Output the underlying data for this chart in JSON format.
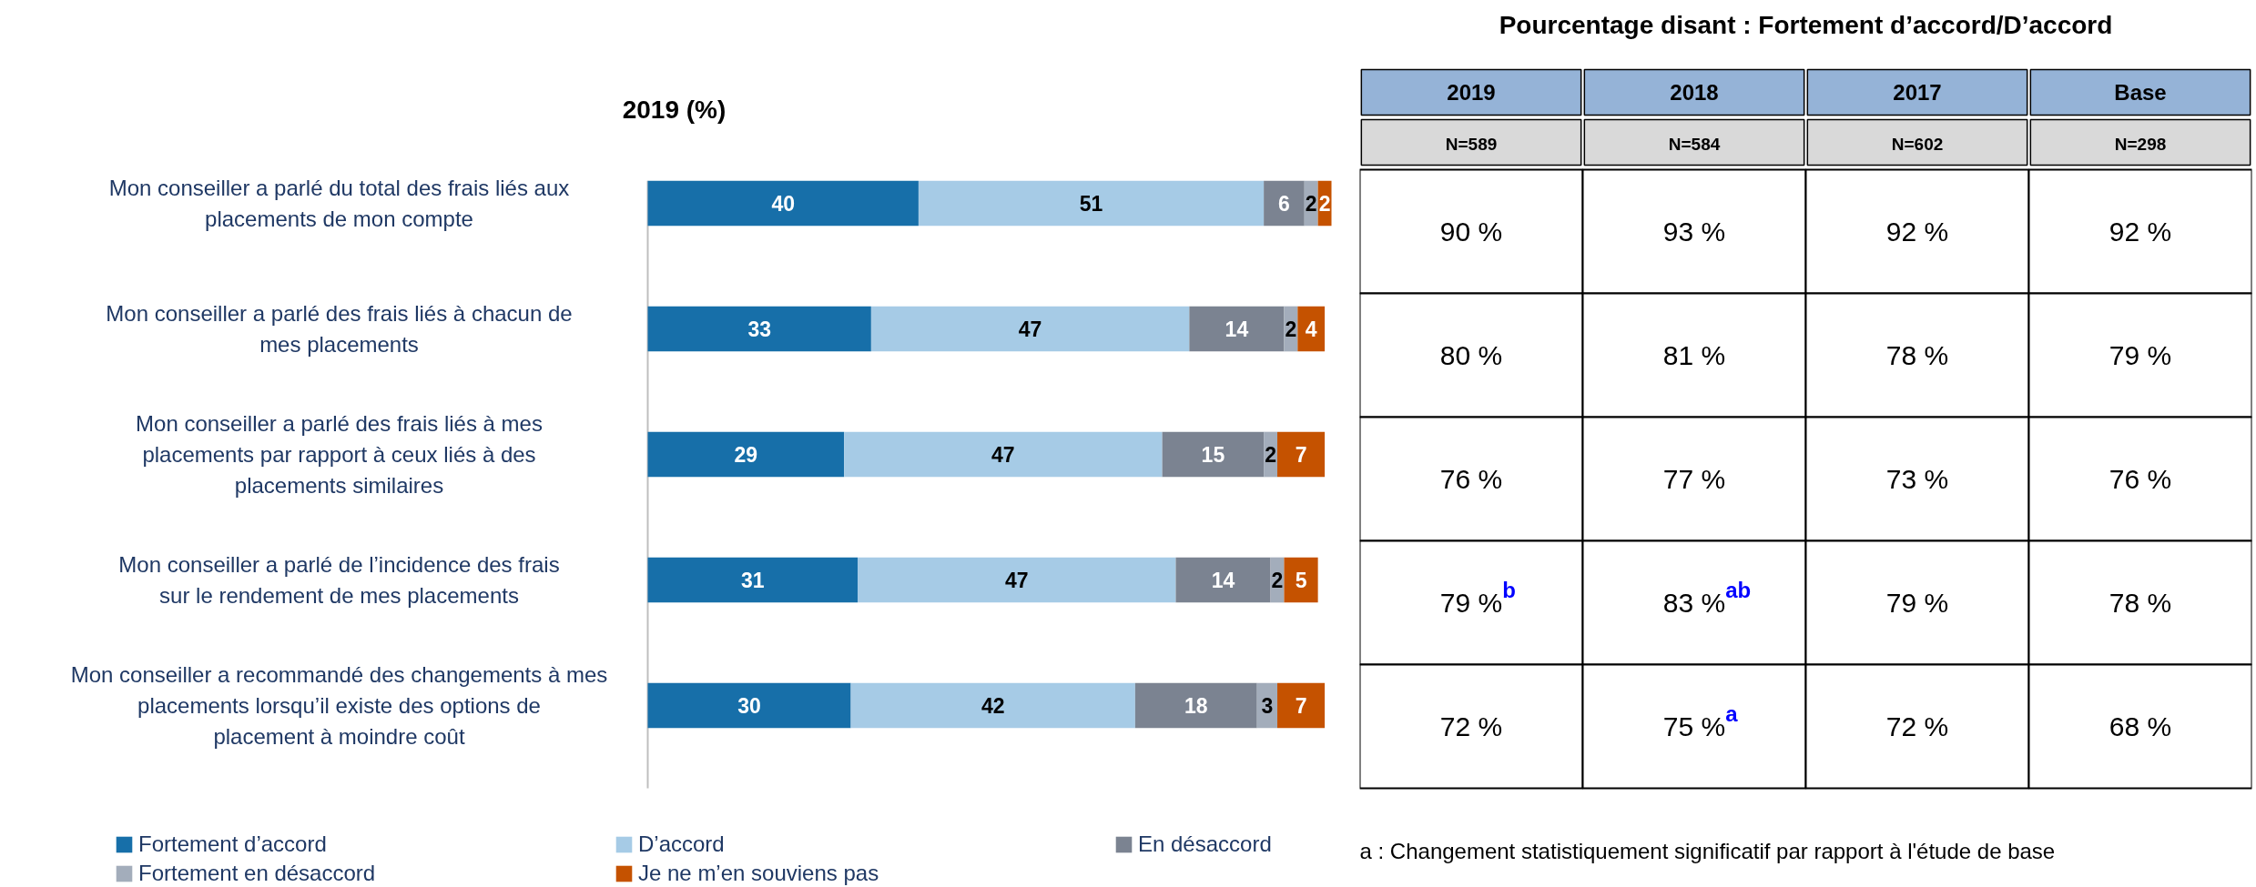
{
  "chart_data": [
    {
      "type": "bar",
      "orientation": "horizontal",
      "stacked": true,
      "title": "2019 (%)",
      "categories": [
        "Mon conseiller a parlé du total des frais liés aux placements de mon compte",
        "Mon conseiller a parlé des frais liés à chacun de mes placements",
        "Mon conseiller a parlé des frais liés à mes placements par rapport à ceux liés à des placements similaires",
        "Mon conseiller a parlé de l’incidence des frais sur le rendement de mes placements",
        "Mon conseiller a recommandé des changements à mes placements lorsqu’il existe des options de placement à moindre coût"
      ],
      "series": [
        {
          "name": "Fortement d’accord",
          "color": "#176fa9",
          "values": [
            40,
            33,
            29,
            31,
            30
          ]
        },
        {
          "name": "D’accord",
          "color": "#a6cbe6",
          "values": [
            51,
            47,
            47,
            47,
            42
          ]
        },
        {
          "name": "En désaccord",
          "color": "#7b8391",
          "values": [
            6,
            14,
            15,
            14,
            18
          ]
        },
        {
          "name": "Fortement en désaccord",
          "color": "#a3adbb",
          "values": [
            2,
            2,
            2,
            2,
            3
          ]
        },
        {
          "name": "Je ne m’en souviens pas",
          "color": "#c55200",
          "values": [
            2,
            4,
            7,
            5,
            7
          ]
        }
      ],
      "data_labels": true,
      "legend": "bottom",
      "tick_labels": "y",
      "grid": false
    },
    {
      "type": "heatmap",
      "title": "Pourcentage disant : Fortement d’accord/D’accord",
      "categories": [
        "2019",
        "2018",
        "2017",
        "Base"
      ],
      "y_categories": [
        null,
        null,
        null,
        null,
        null
      ],
      "cells": [
        [
          90,
          93,
          92,
          92
        ],
        [
          80,
          81,
          78,
          79
        ],
        [
          76,
          77,
          73,
          76
        ],
        [
          79,
          83,
          79,
          78
        ],
        [
          72,
          75,
          72,
          68
        ]
      ],
      "cell_labels": [
        [
          "90 %",
          "93 %",
          "92 %",
          "92 %"
        ],
        [
          "80 %",
          "81 %",
          "78 %",
          "79 %"
        ],
        [
          "76 %",
          "77 %",
          "73 %",
          "76 %"
        ],
        [
          "79 %$^{b}$",
          "83 %$^{ab}$",
          "79 %",
          "78 %"
        ],
        [
          "72 %",
          "75 %$^{a}$",
          "72 %",
          "68 %"
        ]
      ],
      "annotations": [
        "N=589",
        "N=584",
        "N=602",
        "N=298",
        "a : Changement statistiquement significatif par rapport à l'étude de base"
      ]
    }
  ]
}
